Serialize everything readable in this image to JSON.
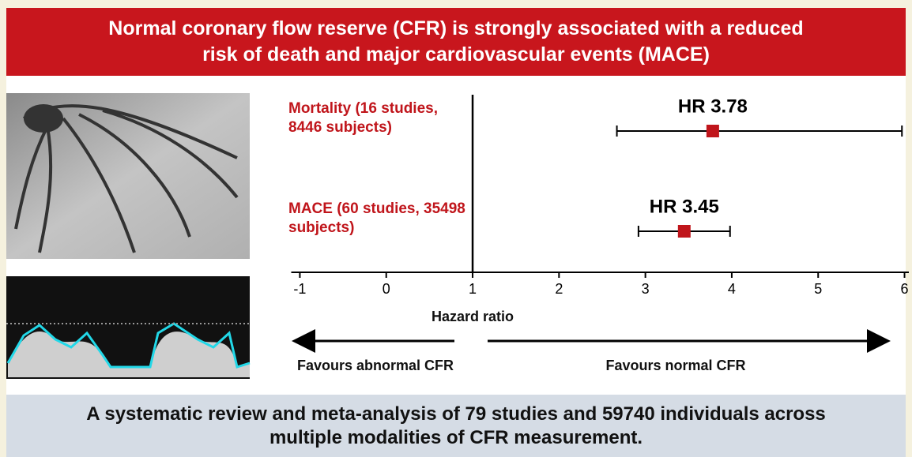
{
  "header": {
    "title": "Normal coronary flow reserve (CFR) is strongly associated with a reduced risk of death and major cardiovascular events (MACE)"
  },
  "chart_data": {
    "type": "forest",
    "categories": [
      "Mortality (16 studies, 8446 subjects)",
      "MACE (60 studies, 35498 subjects)"
    ],
    "values": [
      3.78,
      3.45
    ],
    "value_labels": [
      "HR 3.78",
      "HR 3.45"
    ],
    "ci_low": [
      2.67,
      2.92
    ],
    "ci_high": [
      5.97,
      3.98
    ],
    "color": "#c0151b",
    "xlim": [
      -1.1,
      6.05
    ],
    "xticks": [
      -1,
      0,
      1,
      2,
      3,
      4,
      5,
      6
    ],
    "xlabel": "Hazard ratio",
    "reference_line": 1,
    "annotations": [
      "Favours abnormal CFR",
      "Favours normal CFR"
    ]
  },
  "footer": {
    "text": "A systematic review and meta-analysis of 79 studies and 59740 individuals across multiple modalities of CFR measurement."
  }
}
